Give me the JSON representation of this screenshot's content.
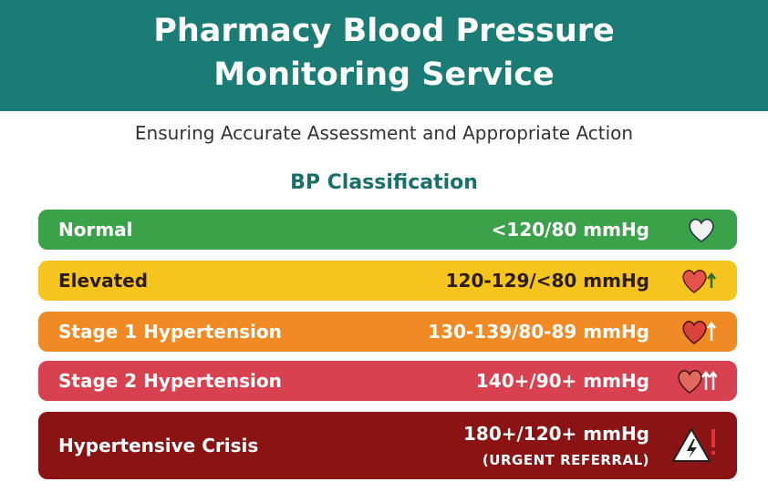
{
  "header": {
    "title_lines": [
      "Pharmacy Blood Pressure",
      "Monitoring Service"
    ]
  },
  "subtitle": "Ensuring Accurate Assessment and Appropriate Action",
  "section_heading": "BP Classification",
  "rows": [
    {
      "label": "Normal",
      "range": "<120/80 mmHg"
    },
    {
      "label": "Elevated",
      "range": "120-129/<80 mmHg"
    },
    {
      "label": "Stage 1 Hypertension",
      "range": "130-139/80-89 mmHg"
    },
    {
      "label": "Stage 2 Hypertension",
      "range": "140+/90+ mmHg"
    },
    {
      "label": "Hypertensive Crisis",
      "range": "180+/120+ mmHg",
      "note": "(URGENT REFERRAL)"
    }
  ]
}
